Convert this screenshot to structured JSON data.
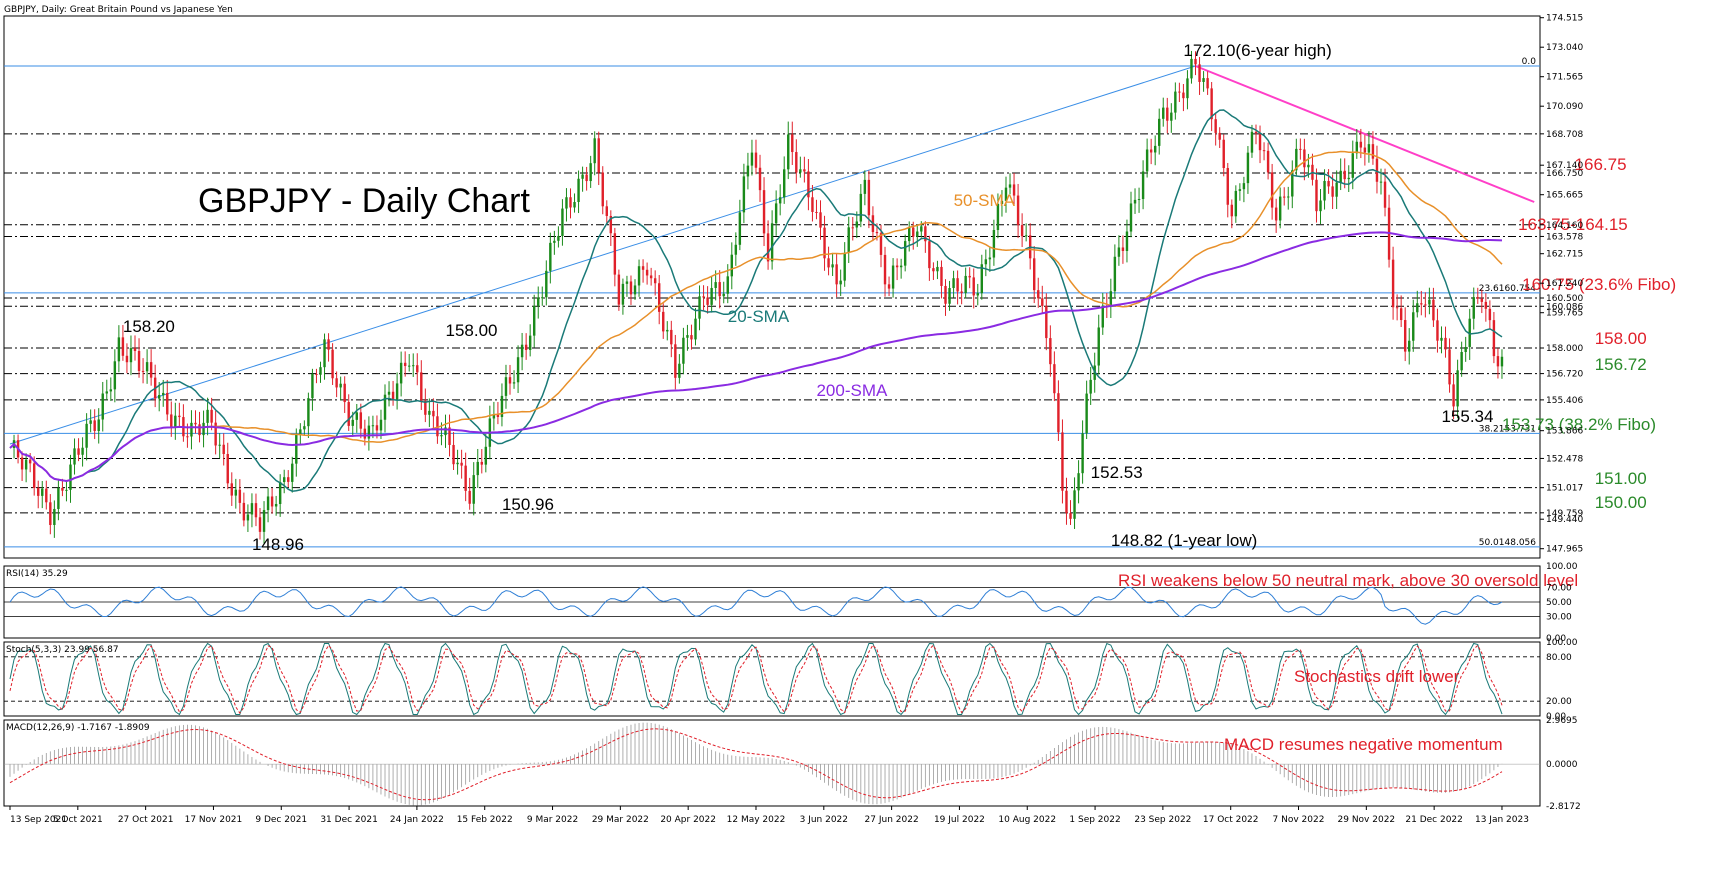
{
  "chart_data": {
    "type": "line",
    "symbol": "GBPJPY",
    "header": "GBPJPY, Daily:  Great Britain Pound vs Japanese Yen",
    "title": "GBPJPY - Daily Chart",
    "y_ticks": [
      "174.515",
      "173.040",
      "171.565",
      "170.090",
      "168.708",
      "167.140",
      "166.750",
      "165.665",
      "164.160",
      "163.578",
      "162.715",
      "161.240",
      "160.500",
      "160.086",
      "159.765",
      "158.000",
      "156.720",
      "155.406",
      "153.866",
      "152.478",
      "151.017",
      "149.759",
      "149.440",
      "147.965"
    ],
    "ylim": [
      147.5,
      174.6
    ],
    "x_labels": [
      "13 Sep 2021",
      "5 Oct 2021",
      "27 Oct 2021",
      "17 Nov 2021",
      "9 Dec 2021",
      "31 Dec 2021",
      "24 Jan 2022",
      "15 Feb 2022",
      "9 Mar 2022",
      "29 Mar 2022",
      "20 Apr 2022",
      "12 May 2022",
      "3 Jun 2022",
      "27 Jun 2022",
      "19 Jul 2022",
      "10 Aug 2022",
      "1 Sep 2022",
      "23 Sep 2022",
      "17 Oct 2022",
      "7 Nov 2022",
      "29 Nov 2022",
      "21 Dec 2022",
      "13 Jan 2023"
    ],
    "price_path": [
      [
        0,
        153.0
      ],
      [
        10,
        150.0
      ],
      [
        22,
        154.6
      ],
      [
        27,
        158.3
      ],
      [
        35,
        156.2
      ],
      [
        45,
        153.6
      ],
      [
        50,
        154.2
      ],
      [
        57,
        150.2
      ],
      [
        62,
        149.0
      ],
      [
        68,
        151.5
      ],
      [
        78,
        157.8
      ],
      [
        84,
        155.0
      ],
      [
        90,
        153.4
      ],
      [
        99,
        158.0
      ],
      [
        104,
        154.2
      ],
      [
        110,
        152.8
      ],
      [
        114,
        151.0
      ],
      [
        125,
        156.9
      ],
      [
        132,
        161.0
      ],
      [
        137,
        164.5
      ],
      [
        145,
        168.1
      ],
      [
        151,
        160.3
      ],
      [
        158,
        162.5
      ],
      [
        165,
        156.6
      ],
      [
        172,
        161.0
      ],
      [
        178,
        160.8
      ],
      [
        184,
        168.5
      ],
      [
        188,
        163.0
      ],
      [
        193,
        167.8
      ],
      [
        199,
        165.5
      ],
      [
        205,
        161.0
      ],
      [
        212,
        166.0
      ],
      [
        218,
        161.2
      ],
      [
        225,
        164.0
      ],
      [
        232,
        161.0
      ],
      [
        240,
        160.8
      ],
      [
        247,
        166.7
      ],
      [
        253,
        162.0
      ],
      [
        258,
        158.0
      ],
      [
        261,
        151.5
      ],
      [
        263,
        149.0
      ],
      [
        266,
        153.5
      ],
      [
        270,
        158.8
      ],
      [
        274,
        162.5
      ],
      [
        280,
        165.7
      ],
      [
        286,
        169.8
      ],
      [
        292,
        171.5
      ],
      [
        294,
        172.1
      ],
      [
        299,
        169.0
      ],
      [
        303,
        165.0
      ],
      [
        309,
        168.8
      ],
      [
        314,
        164.5
      ],
      [
        320,
        168.4
      ],
      [
        324,
        165.0
      ],
      [
        330,
        166.5
      ],
      [
        335,
        168.6
      ],
      [
        340,
        166.0
      ],
      [
        343,
        160.5
      ],
      [
        346,
        158.5
      ],
      [
        350,
        160.8
      ],
      [
        355,
        158.0
      ],
      [
        358,
        155.5
      ],
      [
        362,
        160.0
      ],
      [
        365,
        160.9
      ],
      [
        368,
        157.5
      ],
      [
        370,
        156.9
      ]
    ],
    "n_days": 371,
    "horizontal_levels": [
      {
        "price": 168.708,
        "style": "dash-dot"
      },
      {
        "price": 166.75,
        "style": "dash-dot"
      },
      {
        "price": 164.16,
        "style": "dash-dot"
      },
      {
        "price": 163.578,
        "style": "dash-dot"
      },
      {
        "price": 160.5,
        "style": "dash-dot"
      },
      {
        "price": 160.086,
        "style": "dash-dot"
      },
      {
        "price": 158.0,
        "style": "dash-dot"
      },
      {
        "price": 156.72,
        "style": "dash-dot"
      },
      {
        "price": 155.406,
        "style": "dash-dot"
      },
      {
        "price": 152.478,
        "style": "dash-dot"
      },
      {
        "price": 151.017,
        "style": "dash-dot"
      },
      {
        "price": 149.759,
        "style": "dash-dot"
      }
    ],
    "fibo_levels": [
      {
        "price": 172.1,
        "label": "0.0"
      },
      {
        "price": 160.754,
        "label": "23.6160.754"
      },
      {
        "price": 153.731,
        "label": "38.2153.731"
      },
      {
        "price": 148.056,
        "label": "50.0148.056"
      }
    ],
    "uptrend_line": {
      "from": [
        0,
        153.2
      ],
      "to": [
        294,
        172.1
      ]
    },
    "downtrend_line": {
      "from": [
        294,
        172.1
      ],
      "to": [
        378,
        165.3
      ]
    },
    "sma_labels": [
      {
        "text": "20-SMA",
        "day": 178,
        "price": 159.3,
        "color": "#1a7a78"
      },
      {
        "text": "50-SMA",
        "day": 234,
        "price": 165.1,
        "color": "#e8902a"
      },
      {
        "text": "200-SMA",
        "day": 200,
        "price": 155.6,
        "color": "#8a2be2"
      }
    ],
    "annotations": [
      {
        "text": "172.10(6-year high)",
        "day": 291,
        "price": 172.6,
        "color": "#000000"
      },
      {
        "text": "158.20",
        "day": 28,
        "price": 158.8,
        "color": "#000000"
      },
      {
        "text": "158.00",
        "day": 108,
        "price": 158.6,
        "color": "#000000"
      },
      {
        "text": "148.96",
        "day": 60,
        "price": 147.9,
        "color": "#000000"
      },
      {
        "text": "150.96",
        "day": 122,
        "price": 149.9,
        "color": "#000000"
      },
      {
        "text": "152.53",
        "day": 268,
        "price": 151.5,
        "color": "#000000"
      },
      {
        "text": "148.82 (1-year low)",
        "day": 273,
        "price": 148.1,
        "color": "#000000"
      },
      {
        "text": "155.34",
        "day": 355,
        "price": 154.3,
        "color": "#000000"
      },
      {
        "text": "166.75",
        "day": 388,
        "price": 166.9,
        "color": "#e0202a"
      },
      {
        "text": "163.75-164.15",
        "day": 374,
        "price": 163.9,
        "color": "#e0202a"
      },
      {
        "text": "160.75 (23.6% Fibo)",
        "day": 375,
        "price": 160.9,
        "color": "#e0202a"
      },
      {
        "text": "158.00",
        "day": 393,
        "price": 158.2,
        "color": "#e0202a"
      },
      {
        "text": "156.72",
        "day": 393,
        "price": 156.9,
        "color": "#2a8a2a"
      },
      {
        "text": "153.73 (38.2% Fibo)",
        "day": 370,
        "price": 153.9,
        "color": "#2a8a2a"
      },
      {
        "text": "151.00",
        "day": 393,
        "price": 151.2,
        "color": "#2a8a2a"
      },
      {
        "text": "150.00",
        "day": 393,
        "price": 150.0,
        "color": "#2a8a2a"
      }
    ],
    "rsi": {
      "label": "RSI(14) 35.29",
      "ticks": [
        "100.00",
        "70.00",
        "50.00",
        "30.00",
        "0.00"
      ],
      "levels": [
        70,
        50,
        30
      ],
      "annotation": "RSI weakens below 50 neutral mark, above 30 oversold level"
    },
    "stoch": {
      "label": "Stoch(5,3,3) 23.99 56.87",
      "ticks": [
        "100.00",
        "80.00",
        "20.00",
        "0.00"
      ],
      "levels": [
        80,
        20
      ],
      "annotation": "Stochastics drift lower"
    },
    "macd": {
      "label": "MACD(12,26,9) -1.7167 -1.8909",
      "ticks": [
        "2.9695",
        "0.0000",
        "-2.8172"
      ],
      "annotation": "MACD resumes negative momentum"
    }
  },
  "colors": {
    "up_candle": "#1a8a1a",
    "down_candle": "#e0202a",
    "sma20": "#1a7a78",
    "sma50": "#e8902a",
    "sma200": "#8a2be2",
    "trend_up": "#3a8ee6",
    "trend_down": "#ff3fc8",
    "indicator": "#2f7fd6",
    "signal": "#e0202a"
  }
}
